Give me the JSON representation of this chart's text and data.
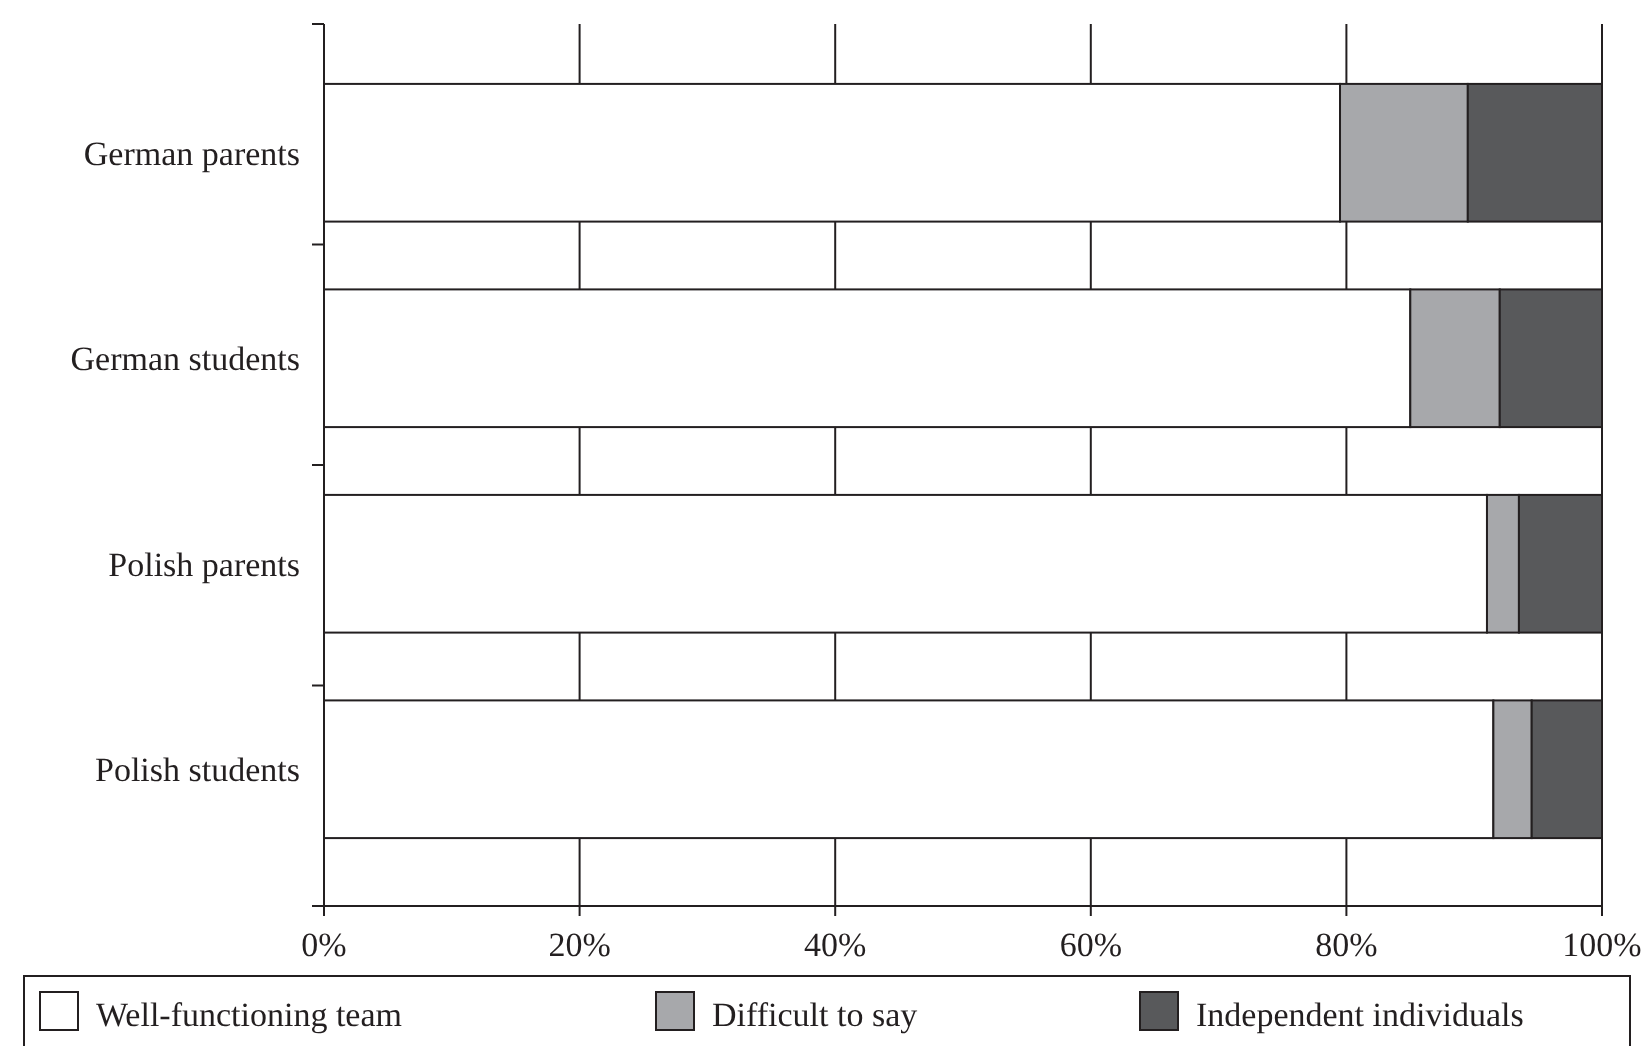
{
  "chart_data": {
    "type": "bar",
    "orientation": "horizontal",
    "stacked": true,
    "categories": [
      "German parents",
      "German students",
      "Polish parents",
      "Polish students"
    ],
    "series": [
      {
        "name": "Well-functioning team",
        "color": "#ffffff",
        "values": [
          79.5,
          85,
          91,
          91.5
        ]
      },
      {
        "name": "Difficult to say",
        "color": "#a7a8ab",
        "values": [
          10,
          7,
          2.5,
          3
        ]
      },
      {
        "name": "Independent individuals",
        "color": "#58595b",
        "values": [
          10.5,
          8,
          6.5,
          5.5
        ]
      }
    ],
    "xlim": [
      0,
      100
    ],
    "xticks": [
      {
        "value": 0,
        "label": "0%"
      },
      {
        "value": 20,
        "label": "20%"
      },
      {
        "value": 40,
        "label": "40%"
      },
      {
        "value": 60,
        "label": "60%"
      },
      {
        "value": 80,
        "label": "80%"
      },
      {
        "value": 100,
        "label": "100%"
      }
    ],
    "grid": "x",
    "legend": "bottom"
  }
}
